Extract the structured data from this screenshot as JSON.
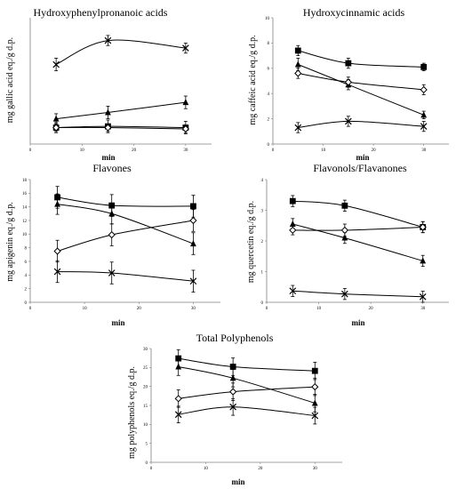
{
  "colors": {
    "ink": "#000000",
    "hollow": "#ffffff",
    "background": "#ffffff"
  },
  "marker_legend": {
    "series_a": "filled-square",
    "series_b": "filled-triangle",
    "series_c": "open-diamond",
    "series_d": "x-cross"
  },
  "chart_data": [
    {
      "type": "line",
      "title": "Hydroxyphenylpronanoic acids",
      "xlabel": "min",
      "ylabel": "mg gallic acid eq./g d.p.",
      "xlim": [
        0,
        35
      ],
      "ylim": [
        0,
        10
      ],
      "xticks": [
        0,
        10,
        20,
        30
      ],
      "yticks": [],
      "x": [
        5,
        15,
        30
      ],
      "grid": false,
      "series": [
        {
          "marker": "square",
          "values": [
            1.3,
            1.4,
            1.3
          ],
          "errors": [
            0.4,
            0.5,
            0.5
          ]
        },
        {
          "marker": "triangle",
          "values": [
            2.0,
            2.5,
            3.3
          ],
          "errors": [
            0.4,
            0.5,
            0.5
          ]
        },
        {
          "marker": "diamond",
          "values": [
            1.3,
            1.3,
            1.2
          ],
          "errors": [
            0.3,
            0.3,
            0.3
          ]
        },
        {
          "marker": "cross",
          "values": [
            6.3,
            8.2,
            7.6
          ],
          "errors": [
            0.5,
            0.4,
            0.4
          ]
        }
      ]
    },
    {
      "type": "line",
      "title": "Hydroxycinnamic acids",
      "xlabel": "min",
      "ylabel": "mg caffeic acid eq./g d.p.",
      "xlim": [
        0,
        35
      ],
      "ylim": [
        0,
        10
      ],
      "xticks": [
        0,
        10,
        20,
        30
      ],
      "yticks": [
        0,
        2,
        4,
        6,
        8,
        10
      ],
      "x": [
        5,
        15,
        30
      ],
      "grid": false,
      "series": [
        {
          "marker": "square",
          "values": [
            7.4,
            6.4,
            6.1
          ],
          "errors": [
            0.4,
            0.4,
            0.3
          ]
        },
        {
          "marker": "triangle",
          "values": [
            6.3,
            4.7,
            2.3
          ],
          "errors": [
            0.5,
            0.4,
            0.3
          ]
        },
        {
          "marker": "diamond",
          "values": [
            5.6,
            4.9,
            4.3
          ],
          "errors": [
            0.4,
            0.4,
            0.4
          ]
        },
        {
          "marker": "cross",
          "values": [
            1.3,
            1.8,
            1.4
          ],
          "errors": [
            0.4,
            0.4,
            0.4
          ]
        }
      ]
    },
    {
      "type": "line",
      "title": "Flavones",
      "xlabel": "min",
      "ylabel": "mg apigenin eq./g d.p.",
      "xlim": [
        0,
        35
      ],
      "ylim": [
        0,
        18
      ],
      "xticks": [
        0,
        10,
        20,
        30
      ],
      "yticks": [
        0,
        2,
        4,
        6,
        8,
        10,
        12,
        14,
        16,
        18
      ],
      "x": [
        5,
        15,
        30
      ],
      "grid": false,
      "series": [
        {
          "marker": "square",
          "values": [
            15.4,
            14.2,
            14.1
          ],
          "errors": [
            1.6,
            1.6,
            1.6
          ]
        },
        {
          "marker": "triangle",
          "values": [
            14.4,
            13.0,
            8.6
          ],
          "errors": [
            1.5,
            1.5,
            1.6
          ]
        },
        {
          "marker": "diamond",
          "values": [
            7.5,
            9.9,
            12.0
          ],
          "errors": [
            1.6,
            1.6,
            1.6
          ]
        },
        {
          "marker": "cross",
          "values": [
            4.5,
            4.3,
            3.1
          ],
          "errors": [
            1.6,
            1.6,
            1.6
          ]
        }
      ]
    },
    {
      "type": "line",
      "title": "Flavonols/Flavanones",
      "xlabel": "min",
      "ylabel": "mg quercetin eq./g d.p.",
      "xlim": [
        0,
        35
      ],
      "ylim": [
        0,
        4
      ],
      "xticks": [
        0,
        10,
        20,
        30
      ],
      "yticks": [
        0,
        1,
        2,
        3,
        4
      ],
      "x": [
        5,
        15,
        30
      ],
      "grid": false,
      "series": [
        {
          "marker": "square",
          "values": [
            3.3,
            3.15,
            2.45
          ],
          "errors": [
            0.18,
            0.18,
            0.18
          ]
        },
        {
          "marker": "triangle",
          "values": [
            2.55,
            2.1,
            1.35
          ],
          "errors": [
            0.18,
            0.18,
            0.18
          ]
        },
        {
          "marker": "diamond",
          "values": [
            2.35,
            2.35,
            2.45
          ],
          "errors": [
            0.15,
            0.2,
            0.18
          ]
        },
        {
          "marker": "cross",
          "values": [
            0.37,
            0.27,
            0.18
          ],
          "errors": [
            0.18,
            0.18,
            0.18
          ]
        }
      ]
    },
    {
      "type": "line",
      "title": "Total Polyphenols",
      "xlabel": "min",
      "ylabel": "mg polyphenols eq./g d.p.",
      "xlim": [
        0,
        35
      ],
      "ylim": [
        0,
        30
      ],
      "xticks": [
        0,
        10,
        20,
        30
      ],
      "yticks": [
        0,
        5,
        10,
        15,
        20,
        25,
        30
      ],
      "x": [
        5,
        15,
        30
      ],
      "grid": false,
      "series": [
        {
          "marker": "square",
          "values": [
            27.4,
            25.2,
            24.1
          ],
          "errors": [
            2.3,
            2.3,
            2.3
          ]
        },
        {
          "marker": "triangle",
          "values": [
            25.2,
            22.2,
            15.6
          ],
          "errors": [
            2.3,
            2.3,
            2.3
          ]
        },
        {
          "marker": "diamond",
          "values": [
            16.8,
            18.6,
            19.9
          ],
          "errors": [
            2.3,
            2.3,
            2.3
          ]
        },
        {
          "marker": "cross",
          "values": [
            12.6,
            14.6,
            12.3
          ],
          "errors": [
            2.2,
            2.2,
            2.2
          ]
        }
      ]
    }
  ]
}
